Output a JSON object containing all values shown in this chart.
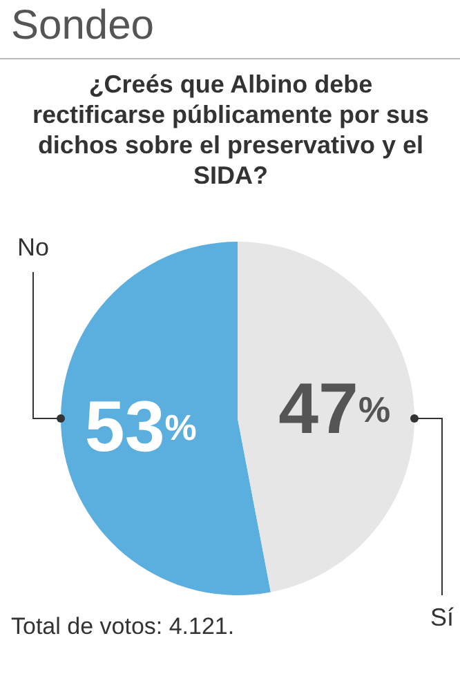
{
  "chart_data": {
    "type": "pie",
    "title": "Sondeo",
    "subtitle": "¿Creés que Albino debe rectificarse públicamente por sus dichos sobre el preservativo y el SIDA?",
    "categories": [
      "No",
      "Sí"
    ],
    "values": [
      53,
      47
    ],
    "colors": [
      "#5aafde",
      "#e6e6e6"
    ],
    "value_labels": [
      "53%",
      "47%"
    ],
    "annotations": [
      "Total de votos: 4.121."
    ]
  }
}
